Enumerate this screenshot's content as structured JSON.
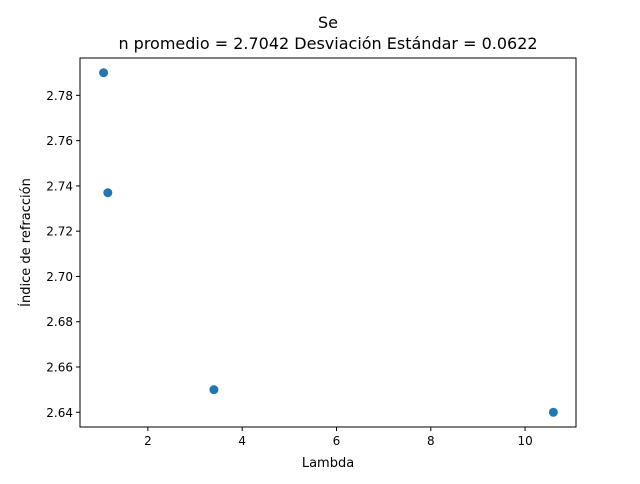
{
  "chart_data": {
    "type": "scatter",
    "title": "Se",
    "subtitle": "n promedio = 2.7042  Desviación Estándar = 0.0622",
    "xlabel": "Lambda",
    "ylabel": "Índice de refracción",
    "xlim": [
      0.56,
      11.08
    ],
    "ylim": [
      2.6335,
      2.7965
    ],
    "xticks": [
      2,
      4,
      6,
      8,
      10
    ],
    "yticks": [
      2.64,
      2.66,
      2.68,
      2.7,
      2.72,
      2.74,
      2.76,
      2.78
    ],
    "xtick_labels": [
      "2",
      "4",
      "6",
      "8",
      "10"
    ],
    "ytick_labels": [
      "2.64",
      "2.66",
      "2.68",
      "2.70",
      "2.72",
      "2.74",
      "2.76",
      "2.78"
    ],
    "grid": false,
    "series": [
      {
        "color": "#1f77b4",
        "x": [
          1.06,
          1.15,
          3.4,
          10.6
        ],
        "y": [
          2.79,
          2.737,
          2.65,
          2.64
        ]
      }
    ]
  }
}
